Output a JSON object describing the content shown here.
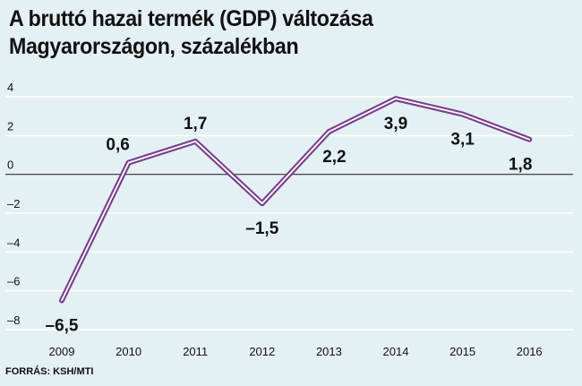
{
  "chart_data": {
    "type": "line",
    "title": "A bruttó hazai termék (GDP) változása Magyarországon, százalékban",
    "source": "FORRÁS: KSH/MTI",
    "categories": [
      "2009",
      "2010",
      "2011",
      "2012",
      "2013",
      "2014",
      "2015",
      "2016"
    ],
    "values": [
      -6.5,
      0.6,
      1.7,
      -1.5,
      2.2,
      3.9,
      3.1,
      1.8
    ],
    "data_labels": [
      "–6,5",
      "0,6",
      "1,7",
      "–1,5",
      "2,2",
      "3,9",
      "3,1",
      "1,8"
    ],
    "yticks": [
      4,
      2,
      0,
      -2,
      -4,
      -6,
      -8
    ],
    "ytick_labels": [
      "4",
      "2",
      "0",
      "–2",
      "–4",
      "–6",
      "–8"
    ],
    "ylim": [
      -8,
      4
    ],
    "grid": true,
    "legend": "none",
    "colors": {
      "background": "#e3f0f4",
      "grid": "#ffffff",
      "zero_line": "#333333",
      "line_outer": "#7a3e8c",
      "line_inner": "#ffffff",
      "text": "#111111"
    }
  }
}
